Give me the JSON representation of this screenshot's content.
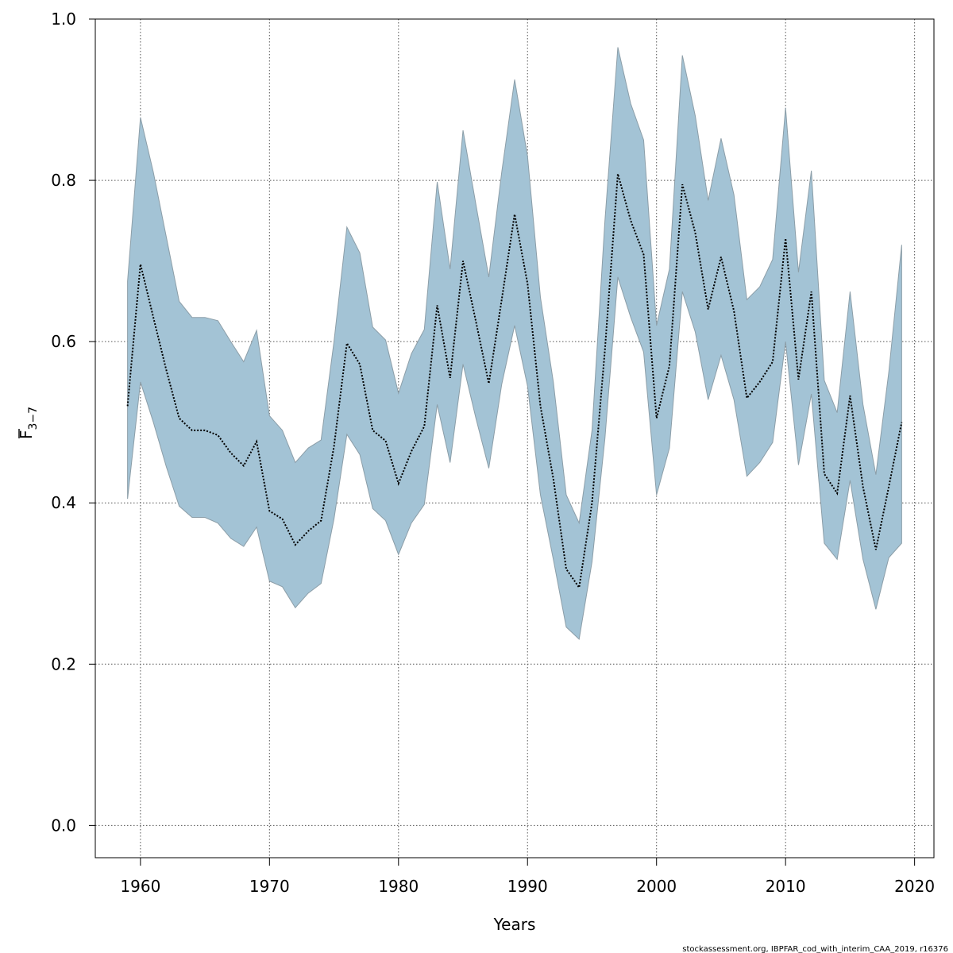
{
  "chart_data": {
    "type": "area",
    "xlabel": "Years",
    "ylabel_main": "F",
    "ylabel_sub": "3−7",
    "xlim": [
      1956.5,
      2021.5
    ],
    "ylim": [
      -0.04,
      1.0
    ],
    "x_ticks": [
      1960,
      1970,
      1980,
      1990,
      2000,
      2010,
      2020
    ],
    "y_ticks": [
      0.0,
      0.2,
      0.4,
      0.6,
      0.8,
      1.0
    ],
    "y_tick_labels": [
      "0.0",
      "0.2",
      "0.4",
      "0.6",
      "0.8",
      "1.0"
    ],
    "grid": true,
    "colors": {
      "band_fill": "#a3c3d5",
      "band_stroke": "#8c9ea8",
      "line": "#000000",
      "grid": "#555555"
    },
    "years": [
      1959,
      1960,
      1961,
      1962,
      1963,
      1964,
      1965,
      1966,
      1967,
      1968,
      1969,
      1970,
      1971,
      1972,
      1973,
      1974,
      1975,
      1976,
      1977,
      1978,
      1979,
      1980,
      1981,
      1982,
      1983,
      1984,
      1985,
      1986,
      1987,
      1988,
      1989,
      1990,
      1991,
      1992,
      1993,
      1994,
      1995,
      1996,
      1997,
      1998,
      1999,
      2000,
      2001,
      2002,
      2003,
      2004,
      2005,
      2006,
      2007,
      2008,
      2009,
      2010,
      2011,
      2012,
      2013,
      2014,
      2015,
      2016,
      2017,
      2018,
      2019
    ],
    "estimate": [
      0.52,
      0.696,
      0.63,
      0.565,
      0.505,
      0.49,
      0.49,
      0.484,
      0.462,
      0.446,
      0.476,
      0.39,
      0.38,
      0.348,
      0.365,
      0.378,
      0.47,
      0.598,
      0.572,
      0.49,
      0.477,
      0.424,
      0.464,
      0.495,
      0.645,
      0.555,
      0.7,
      0.625,
      0.548,
      0.652,
      0.758,
      0.672,
      0.52,
      0.43,
      0.318,
      0.295,
      0.4,
      0.59,
      0.808,
      0.75,
      0.708,
      0.505,
      0.57,
      0.795,
      0.735,
      0.64,
      0.705,
      0.638,
      0.53,
      0.55,
      0.575,
      0.728,
      0.553,
      0.662,
      0.436,
      0.412,
      0.533,
      0.42,
      0.342,
      0.42,
      0.5
    ],
    "upper": [
      0.675,
      0.878,
      0.81,
      0.73,
      0.65,
      0.63,
      0.63,
      0.626,
      0.6,
      0.575,
      0.614,
      0.508,
      0.49,
      0.45,
      0.468,
      0.478,
      0.6,
      0.742,
      0.71,
      0.618,
      0.602,
      0.536,
      0.585,
      0.615,
      0.798,
      0.69,
      0.862,
      0.77,
      0.68,
      0.81,
      0.925,
      0.83,
      0.655,
      0.55,
      0.41,
      0.375,
      0.49,
      0.75,
      0.965,
      0.895,
      0.85,
      0.62,
      0.69,
      0.955,
      0.88,
      0.775,
      0.852,
      0.782,
      0.652,
      0.668,
      0.702,
      0.89,
      0.686,
      0.812,
      0.552,
      0.512,
      0.662,
      0.522,
      0.435,
      0.562,
      0.72
    ],
    "lower": [
      0.405,
      0.55,
      0.5,
      0.445,
      0.396,
      0.382,
      0.382,
      0.375,
      0.356,
      0.346,
      0.37,
      0.303,
      0.296,
      0.27,
      0.288,
      0.3,
      0.38,
      0.485,
      0.46,
      0.393,
      0.378,
      0.336,
      0.375,
      0.398,
      0.522,
      0.45,
      0.572,
      0.505,
      0.443,
      0.547,
      0.62,
      0.545,
      0.41,
      0.33,
      0.246,
      0.231,
      0.327,
      0.48,
      0.68,
      0.63,
      0.587,
      0.41,
      0.468,
      0.662,
      0.612,
      0.528,
      0.583,
      0.528,
      0.433,
      0.45,
      0.475,
      0.6,
      0.447,
      0.535,
      0.35,
      0.33,
      0.428,
      0.33,
      0.268,
      0.332,
      0.35
    ]
  },
  "footer": "stockassessment.org, IBPFAR_cod_with_interim_CAA_2019, r16376"
}
